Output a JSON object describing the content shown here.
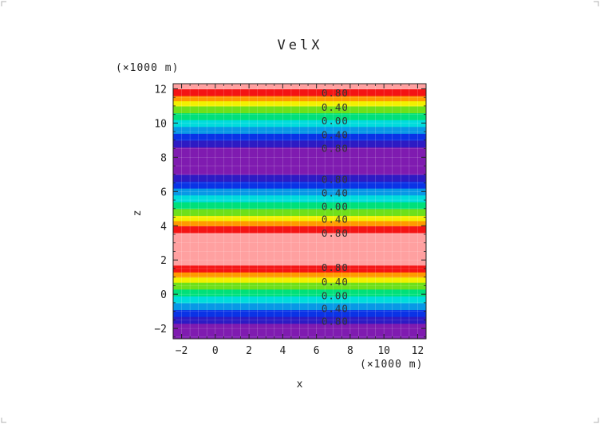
{
  "chart_data": {
    "type": "heatmap",
    "title": "VelX",
    "xlabel": "x",
    "ylabel": "z",
    "x_unit_label": "(×1000 m)",
    "y_unit_label": "(×1000 m)",
    "xlim": [
      -2.5,
      12.5
    ],
    "ylim": [
      -2.6,
      12.3
    ],
    "x_ticks": [
      -2,
      0,
      2,
      4,
      6,
      8,
      10,
      12
    ],
    "y_ticks": [
      -2,
      0,
      2,
      4,
      6,
      8,
      10,
      12
    ],
    "x_tick_labels": [
      "−2",
      "0",
      "2",
      "4",
      "6",
      "8",
      "10",
      "12"
    ],
    "y_tick_labels": [
      "−2",
      "0",
      "2",
      "4",
      "6",
      "8",
      "10",
      "12"
    ],
    "grid": true,
    "bands": [
      {
        "z_from": -2.6,
        "z_to": -1.7,
        "color": "#7f1bb0"
      },
      {
        "z_from": -1.7,
        "z_to": -1.3,
        "color": "#2d1bc4"
      },
      {
        "z_from": -1.3,
        "z_to": -0.9,
        "color": "#0a33e6"
      },
      {
        "z_from": -0.9,
        "z_to": -0.5,
        "color": "#0898e6"
      },
      {
        "z_from": -0.5,
        "z_to": -0.1,
        "color": "#00dcdc"
      },
      {
        "z_from": -0.1,
        "z_to": 0.3,
        "color": "#00e07a"
      },
      {
        "z_from": 0.3,
        "z_to": 0.7,
        "color": "#6ee01a"
      },
      {
        "z_from": 0.7,
        "z_to": 1.0,
        "color": "#f2f000"
      },
      {
        "z_from": 1.0,
        "z_to": 1.3,
        "color": "#ff9a00"
      },
      {
        "z_from": 1.3,
        "z_to": 1.7,
        "color": "#f41414"
      },
      {
        "z_from": 1.7,
        "z_to": 3.6,
        "color": "#ffa0a0"
      },
      {
        "z_from": 3.6,
        "z_to": 4.0,
        "color": "#f41414"
      },
      {
        "z_from": 4.0,
        "z_to": 4.3,
        "color": "#ff9a00"
      },
      {
        "z_from": 4.3,
        "z_to": 4.6,
        "color": "#f2f000"
      },
      {
        "z_from": 4.6,
        "z_to": 5.0,
        "color": "#6ee01a"
      },
      {
        "z_from": 5.0,
        "z_to": 5.4,
        "color": "#00e07a"
      },
      {
        "z_from": 5.4,
        "z_to": 5.8,
        "color": "#00dcdc"
      },
      {
        "z_from": 5.8,
        "z_to": 6.2,
        "color": "#0898e6"
      },
      {
        "z_from": 6.2,
        "z_to": 6.6,
        "color": "#0a33e6"
      },
      {
        "z_from": 6.6,
        "z_to": 7.0,
        "color": "#2d1bc4"
      },
      {
        "z_from": 7.0,
        "z_to": 8.6,
        "color": "#7f1bb0"
      },
      {
        "z_from": 8.6,
        "z_to": 9.0,
        "color": "#2d1bc4"
      },
      {
        "z_from": 9.0,
        "z_to": 9.4,
        "color": "#0a33e6"
      },
      {
        "z_from": 9.4,
        "z_to": 9.8,
        "color": "#0898e6"
      },
      {
        "z_from": 9.8,
        "z_to": 10.2,
        "color": "#00dcdc"
      },
      {
        "z_from": 10.2,
        "z_to": 10.6,
        "color": "#00e07a"
      },
      {
        "z_from": 10.6,
        "z_to": 11.0,
        "color": "#6ee01a"
      },
      {
        "z_from": 11.0,
        "z_to": 11.3,
        "color": "#f2f000"
      },
      {
        "z_from": 11.3,
        "z_to": 11.6,
        "color": "#ff9a00"
      },
      {
        "z_from": 11.6,
        "z_to": 12.0,
        "color": "#f41414"
      },
      {
        "z_from": 12.0,
        "z_to": 12.3,
        "color": "#ffa0a0"
      }
    ],
    "contour_labels": [
      {
        "text": "0.80",
        "x": 7.1,
        "z": 11.75
      },
      {
        "text": "0.40",
        "x": 7.1,
        "z": 10.9
      },
      {
        "text": "0.00",
        "x": 7.1,
        "z": 10.1
      },
      {
        "text": "0.40",
        "x": 7.1,
        "z": 9.3
      },
      {
        "text": "0.80",
        "x": 7.1,
        "z": 8.5
      },
      {
        "text": "0.80",
        "x": 7.1,
        "z": 6.7
      },
      {
        "text": "0.40",
        "x": 7.1,
        "z": 5.9
      },
      {
        "text": "0.00",
        "x": 7.1,
        "z": 5.1
      },
      {
        "text": "0.40",
        "x": 7.1,
        "z": 4.35
      },
      {
        "text": "0.80",
        "x": 7.1,
        "z": 3.55
      },
      {
        "text": "0.80",
        "x": 7.1,
        "z": 1.55
      },
      {
        "text": "0.40",
        "x": 7.1,
        "z": 0.7
      },
      {
        "text": "0.00",
        "x": 7.1,
        "z": -0.1
      },
      {
        "text": "0.40",
        "x": 7.1,
        "z": -0.85
      },
      {
        "text": "0.80",
        "x": 7.1,
        "z": -1.6
      }
    ]
  }
}
